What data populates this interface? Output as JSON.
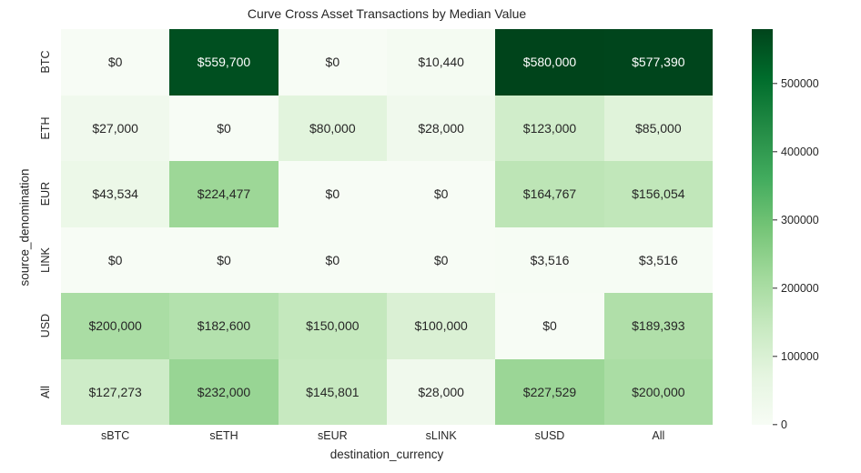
{
  "chart_data": {
    "type": "heatmap",
    "title": "Curve Cross Asset Transactions by Median Value",
    "xlabel": "destination_currency",
    "ylabel": "source_denomination",
    "rows": [
      "BTC",
      "ETH",
      "EUR",
      "LINK",
      "USD",
      "All"
    ],
    "columns": [
      "sBTC",
      "sETH",
      "sEUR",
      "sLINK",
      "sUSD",
      "All"
    ],
    "values": [
      [
        0,
        559700,
        0,
        10440,
        580000,
        577390
      ],
      [
        27000,
        0,
        80000,
        28000,
        123000,
        85000
      ],
      [
        43534,
        224477,
        0,
        0,
        164767,
        156054
      ],
      [
        0,
        0,
        0,
        0,
        3516,
        3516
      ],
      [
        200000,
        182600,
        150000,
        100000,
        0,
        189393
      ],
      [
        127273,
        232000,
        145801,
        28000,
        227529,
        200000
      ]
    ],
    "cell_labels": [
      [
        "$0",
        "$559,700",
        "$0",
        "$10,440",
        "$580,000",
        "$577,390"
      ],
      [
        "$27,000",
        "$0",
        "$80,000",
        "$28,000",
        "$123,000",
        "$85,000"
      ],
      [
        "$43,534",
        "$224,477",
        "$0",
        "$0",
        "$164,767",
        "$156,054"
      ],
      [
        "$0",
        "$0",
        "$0",
        "$0",
        "$3,516",
        "$3,516"
      ],
      [
        "$200,000",
        "$182,600",
        "$150,000",
        "$100,000",
        "$0",
        "$189,393"
      ],
      [
        "$127,273",
        "$232,000",
        "$145,801",
        "$28,000",
        "$227,529",
        "$200,000"
      ]
    ],
    "vmin": 0,
    "vmax": 580000,
    "colorbar_ticks": [
      "0",
      "100000",
      "200000",
      "300000",
      "400000",
      "500000"
    ],
    "colorbar_tick_values": [
      0,
      100000,
      200000,
      300000,
      400000,
      500000
    ],
    "colormap_name": "Greens",
    "colormap_stops": [
      "#f7fcf5",
      "#e5f5e0",
      "#c7e9c0",
      "#a1d99b",
      "#74c476",
      "#41ab5d",
      "#238b45",
      "#006d2c",
      "#00441b"
    ],
    "annotation_color_dark": "#262626",
    "annotation_color_light": "#ffffff",
    "legend_position": "right",
    "grid": false
  }
}
